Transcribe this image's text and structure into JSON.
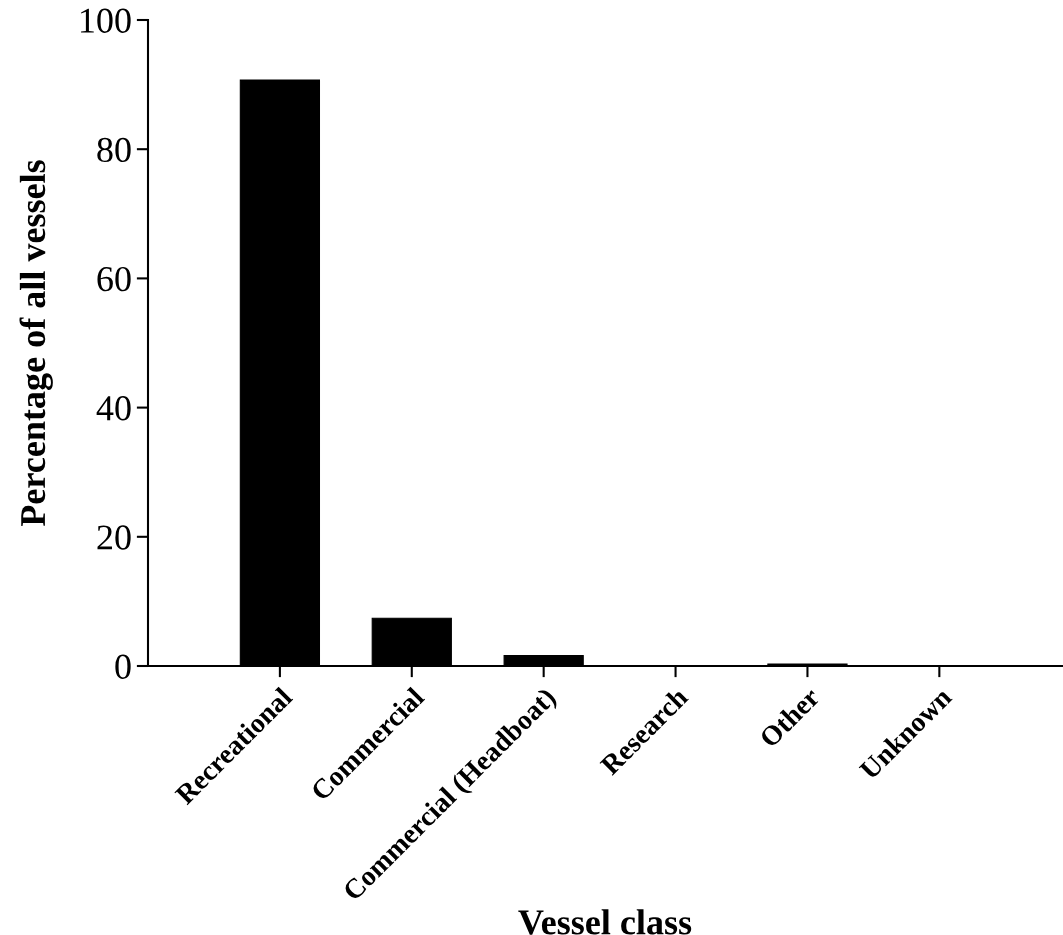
{
  "chart_data": {
    "type": "bar",
    "xlabel": "Vessel class",
    "ylabel": "Percentage of all vessels",
    "categories": [
      "Recreational",
      "Commercial",
      "Commercial (Headboat)",
      "Research",
      "Other",
      "Unknown"
    ],
    "values": [
      90.7,
      7.4,
      1.6,
      0,
      0.3,
      0
    ],
    "color": "#000000",
    "ylim": [
      0,
      100
    ],
    "yticks": [
      0,
      20,
      40,
      60,
      80,
      100
    ],
    "grid": false
  }
}
